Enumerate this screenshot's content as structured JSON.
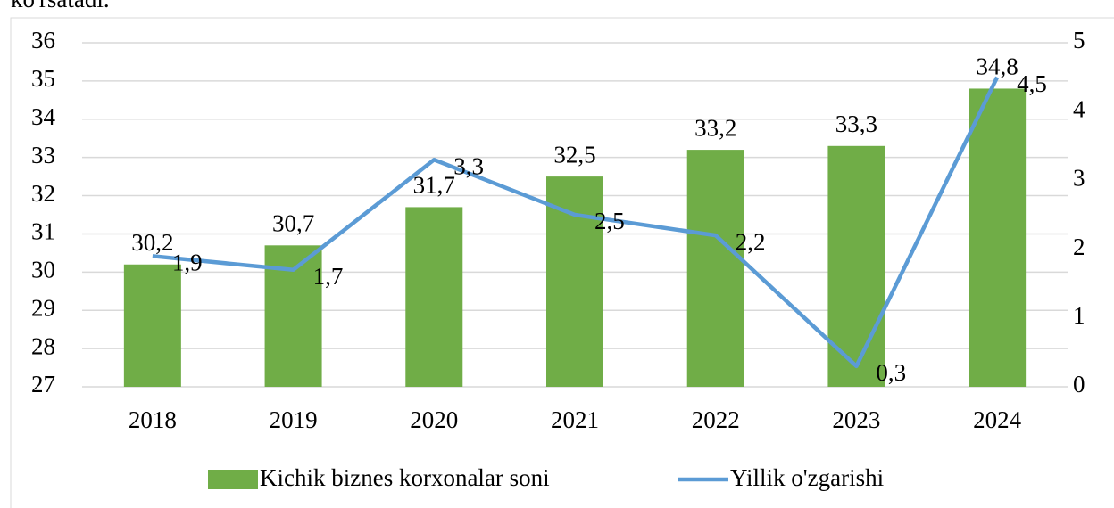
{
  "page_text": "ko'rsatadi.",
  "chart_data": {
    "type": "bar",
    "categories": [
      "2018",
      "2019",
      "2020",
      "2021",
      "2022",
      "2023",
      "2024"
    ],
    "series": [
      {
        "name": "Kichik biznes korxonalar soni",
        "type": "bar",
        "color": "#70ad47",
        "axis": "y",
        "values": [
          30.2,
          30.7,
          31.7,
          32.5,
          33.2,
          33.3,
          34.8
        ],
        "value_labels": [
          "30,2",
          "30,7",
          "31,7",
          "32,5",
          "33,2",
          "33,3",
          "34,8"
        ]
      },
      {
        "name": "Yillik o'zgarishi",
        "type": "line",
        "color": "#5b9bd5",
        "axis": "y2",
        "values": [
          1.9,
          1.7,
          3.3,
          2.5,
          2.2,
          0.3,
          4.5
        ],
        "value_labels": [
          "1,9",
          "1,7",
          "3,3",
          "2,5",
          "2,2",
          "0,3",
          "4,5"
        ]
      }
    ],
    "ylim": [
      27,
      36
    ],
    "yticks": [
      27,
      28,
      29,
      30,
      31,
      32,
      33,
      34,
      35,
      36
    ],
    "y2lim": [
      0,
      5
    ],
    "y2ticks": [
      0,
      1,
      2,
      3,
      4,
      5
    ],
    "grid": true,
    "legend": "bottom"
  }
}
